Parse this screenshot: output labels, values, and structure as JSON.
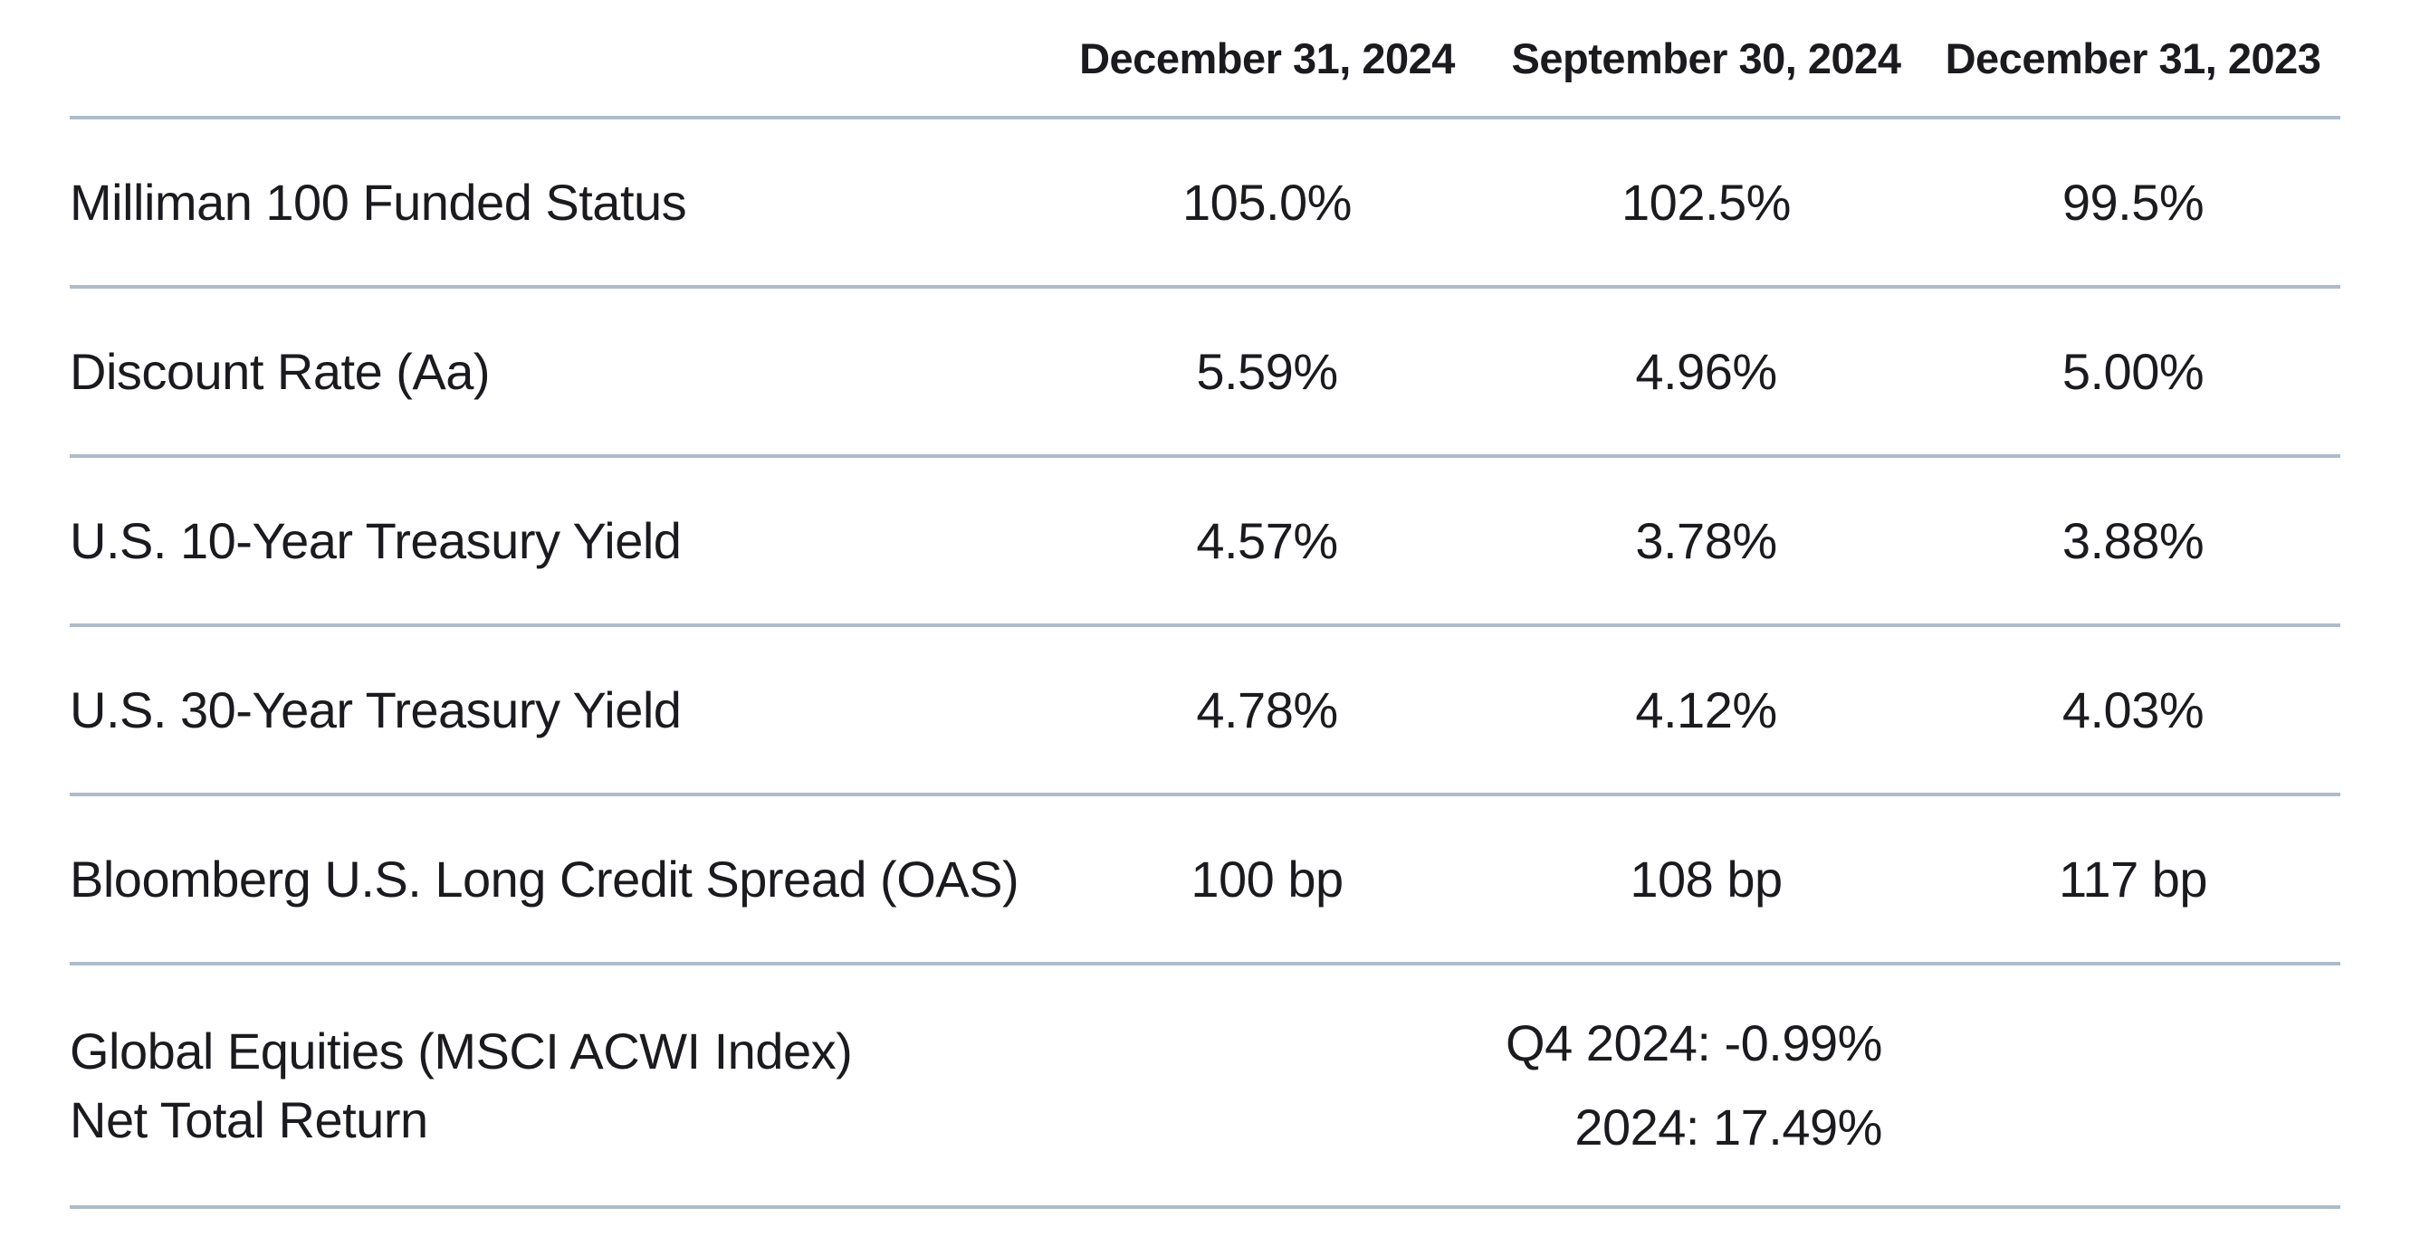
{
  "chart_data": {
    "type": "table",
    "columns": [
      "",
      "December 31, 2024",
      "September 30, 2024",
      "December 31, 2023"
    ],
    "rows": [
      {
        "label": "Milliman 100 Funded Status",
        "values": [
          "105.0%",
          "102.5%",
          "99.5%"
        ]
      },
      {
        "label": "Discount Rate (Aa)",
        "values": [
          "5.59%",
          "4.96%",
          "5.00%"
        ]
      },
      {
        "label": "U.S. 10-Year Treasury Yield",
        "values": [
          "4.57%",
          "3.78%",
          "3.88%"
        ]
      },
      {
        "label": "U.S. 30-Year Treasury Yield",
        "values": [
          "4.78%",
          "4.12%",
          "4.03%"
        ]
      },
      {
        "label": "Bloomberg U.S. Long Credit Spread (OAS)",
        "values": [
          "100 bp",
          "108 bp",
          "117 bp"
        ]
      },
      {
        "label_lines": [
          "Global Equities (MSCI ACWI Index)",
          "Net Total Return"
        ],
        "merged_values": [
          "Q4 2024: -0.99%",
          "2024: 17.49%"
        ],
        "colspan": 3
      }
    ],
    "layout_hints": {
      "grid": "horizontal dividers only",
      "value_alignment": "center",
      "last_row_value_span": "columns 2-4, right-aligned block centered"
    },
    "colors": {
      "divider": "#aebcc9",
      "text": "#1b1b1f",
      "background": "#ffffff"
    }
  }
}
